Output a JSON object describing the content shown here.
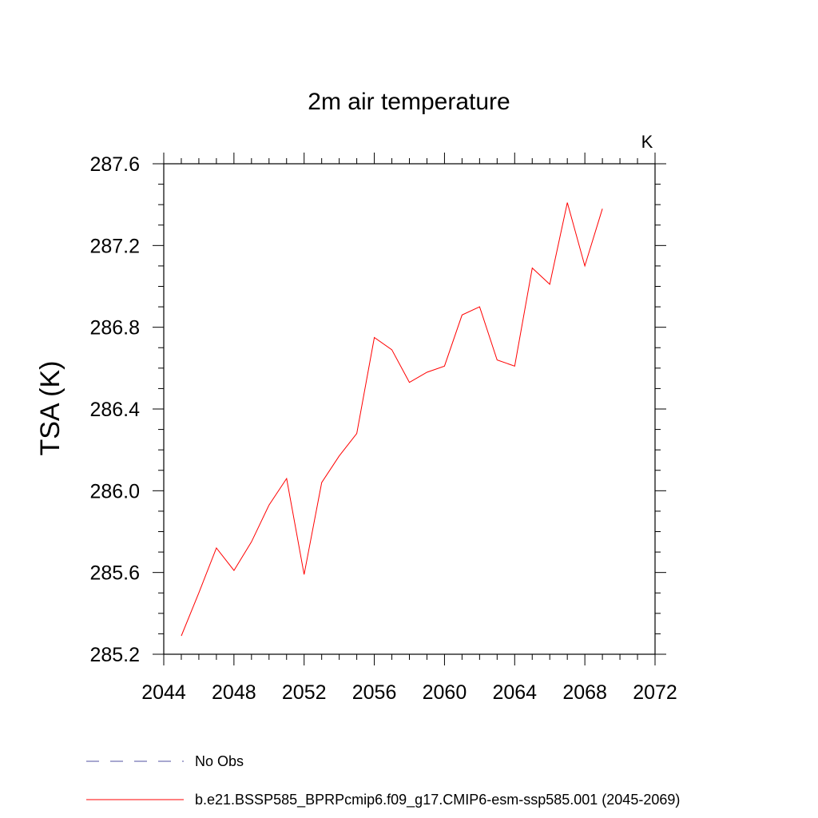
{
  "chart_data": {
    "type": "line",
    "title": "2m air temperature",
    "units": "K",
    "ylabel": "TSA  (K)",
    "xlabel": "",
    "xlim": [
      2044,
      2072
    ],
    "ylim": [
      285.2,
      287.6
    ],
    "x_ticks": [
      2044,
      2048,
      2052,
      2056,
      2060,
      2064,
      2068,
      2072
    ],
    "x_tick_labels": [
      "2044",
      "2048",
      "2052",
      "2056",
      "2060",
      "2064",
      "2068",
      "2072"
    ],
    "y_ticks": [
      285.2,
      285.6,
      286.0,
      286.4,
      286.8,
      287.2,
      287.6
    ],
    "y_tick_labels": [
      "285.2",
      "285.6",
      "286.0",
      "286.4",
      "286.8",
      "287.2",
      "287.6"
    ],
    "grid": false,
    "legend_position": "bottom",
    "series": [
      {
        "name": "b.e21.BSSP585_BPRPcmip6.f09_g17.CMIP6-esm-ssp585.001 (2045-2069)",
        "color": "#ff0000",
        "dash": "solid",
        "x": [
          2045,
          2046,
          2047,
          2048,
          2049,
          2050,
          2051,
          2052,
          2053,
          2054,
          2055,
          2056,
          2057,
          2058,
          2059,
          2060,
          2061,
          2062,
          2063,
          2064,
          2065,
          2066,
          2067,
          2068,
          2069
        ],
        "y": [
          285.29,
          285.5,
          285.72,
          285.61,
          285.75,
          285.93,
          286.06,
          285.59,
          286.04,
          286.17,
          286.28,
          286.75,
          286.69,
          286.53,
          286.58,
          286.61,
          286.86,
          286.9,
          286.64,
          286.61,
          287.09,
          287.01,
          287.41,
          287.1,
          287.38
        ]
      }
    ],
    "legend": [
      {
        "label": "No Obs",
        "color": "#5050a0",
        "dash": "dashed"
      },
      {
        "label": "b.e21.BSSP585_BPRPcmip6.f09_g17.CMIP6-esm-ssp585.001 (2045-2069)",
        "color": "#ff0000",
        "dash": "solid"
      }
    ]
  }
}
